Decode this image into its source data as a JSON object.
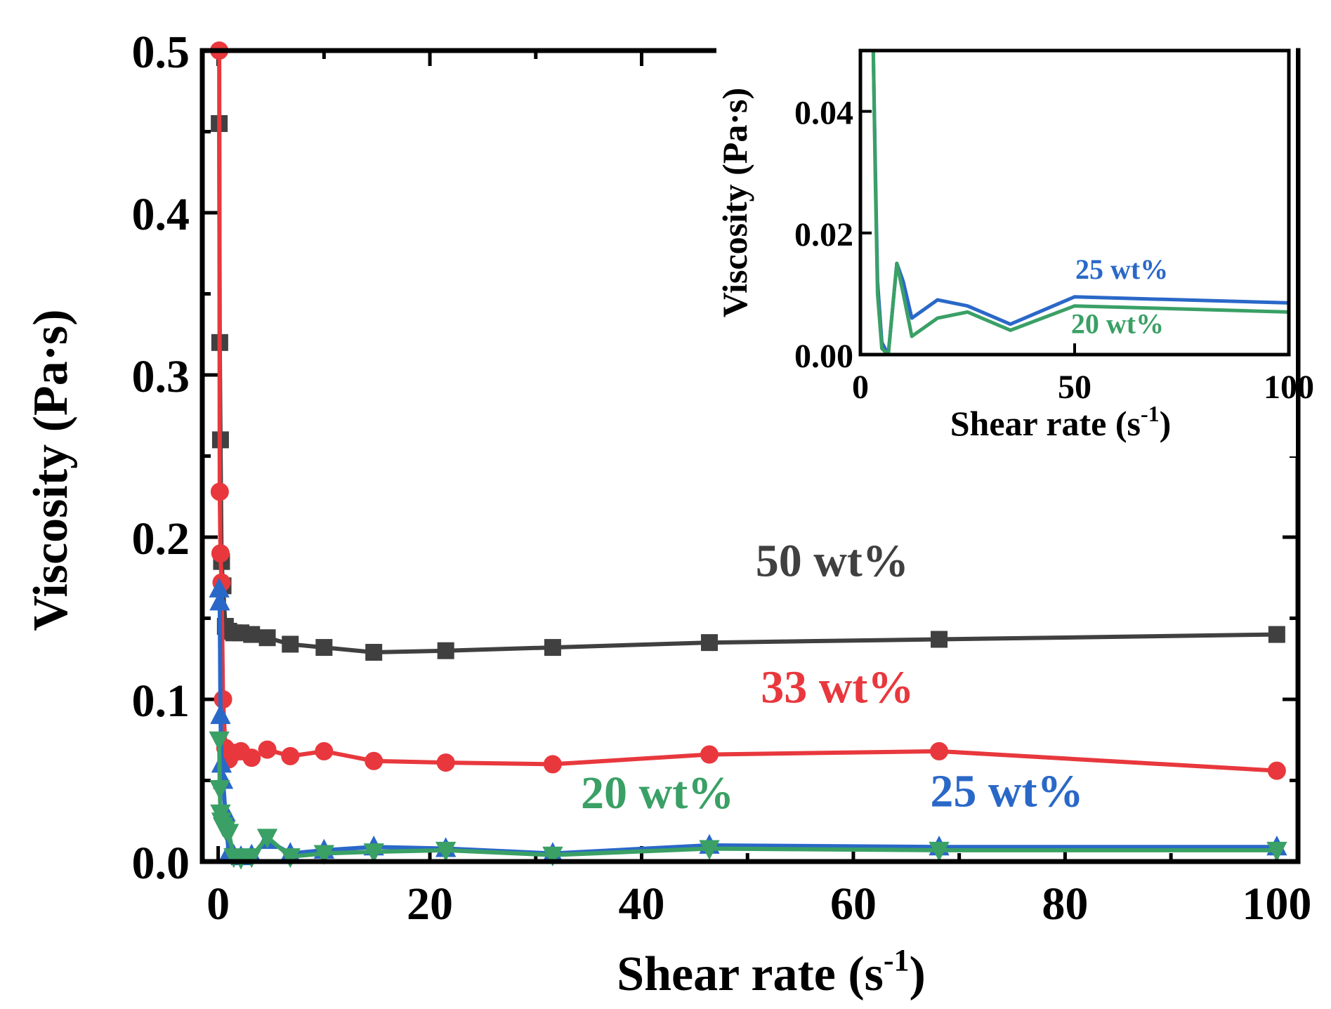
{
  "chart_data": [
    {
      "type": "line",
      "xlabel": "Shear rate (s-1)",
      "xlabel_main": "Shear rate (s",
      "xlabel_sup": "-1",
      "xlabel_close": ")",
      "ylabel": "Viscosity (Pa·s)",
      "xlim": [
        -1.5,
        102
      ],
      "ylim": [
        0,
        0.5
      ],
      "xticks": [
        0,
        20,
        40,
        60,
        80,
        100
      ],
      "yticks": [
        0.0,
        0.1,
        0.2,
        0.3,
        0.4,
        0.5
      ],
      "xtick_labels": [
        "0",
        "20",
        "40",
        "60",
        "80",
        "100"
      ],
      "ytick_labels": [
        "0.0",
        "0.1",
        "0.2",
        "0.3",
        "0.4",
        "0.5"
      ],
      "series": [
        {
          "name": "50 wt%",
          "color": "#404040",
          "marker": "square",
          "x": [
            0.1,
            0.15,
            0.22,
            0.32,
            0.46,
            0.68,
            1.0,
            1.47,
            2.15,
            3.16,
            4.64,
            6.81,
            10.0,
            14.7,
            21.5,
            31.6,
            46.4,
            68.1,
            100
          ],
          "y": [
            0.455,
            0.32,
            0.26,
            0.185,
            0.17,
            0.145,
            0.142,
            0.141,
            0.141,
            0.14,
            0.138,
            0.134,
            0.132,
            0.129,
            0.13,
            0.132,
            0.135,
            0.137,
            0.14
          ]
        },
        {
          "name": "33 wt%",
          "color": "#e8383d",
          "marker": "circle",
          "x": [
            0.1,
            0.15,
            0.22,
            0.32,
            0.46,
            0.68,
            1.0,
            1.47,
            2.15,
            3.16,
            4.64,
            6.81,
            10.0,
            14.7,
            21.5,
            31.6,
            46.4,
            68.1,
            100
          ],
          "y": [
            0.5,
            0.228,
            0.19,
            0.172,
            0.1,
            0.07,
            0.063,
            0.067,
            0.068,
            0.064,
            0.069,
            0.065,
            0.068,
            0.062,
            0.061,
            0.06,
            0.066,
            0.068,
            0.056
          ]
        },
        {
          "name": "25 wt%",
          "color": "#2a68c8",
          "marker": "triangle-up",
          "x": [
            0.1,
            0.15,
            0.22,
            0.32,
            0.46,
            0.68,
            1.0,
            1.47,
            2.15,
            3.16,
            4.64,
            6.81,
            10.0,
            14.7,
            21.5,
            31.6,
            46.4,
            68.1,
            100
          ],
          "y": [
            0.168,
            0.16,
            0.09,
            0.06,
            0.05,
            0.03,
            0.005,
            0.004,
            0.003,
            0.004,
            0.013,
            0.005,
            0.007,
            0.009,
            0.008,
            0.005,
            0.01,
            0.009,
            0.009
          ]
        },
        {
          "name": "20 wt%",
          "color": "#3aa065",
          "marker": "triangle-down",
          "x": [
            0.1,
            0.15,
            0.22,
            0.32,
            0.46,
            0.68,
            1.0,
            1.47,
            2.15,
            3.16,
            4.64,
            6.81,
            10.0,
            14.7,
            21.5,
            31.6,
            46.4,
            68.1,
            100
          ],
          "y": [
            0.075,
            0.045,
            0.03,
            0.025,
            0.022,
            0.02,
            0.018,
            0.003,
            0.002,
            0.003,
            0.015,
            0.003,
            0.005,
            0.006,
            0.007,
            0.004,
            0.008,
            0.007,
            0.007
          ]
        }
      ],
      "annotations": [
        {
          "text": "50 wt%",
          "series": "50 wt%",
          "x": 58,
          "y": 0.176
        },
        {
          "text": "33 wt%",
          "series": "33 wt%",
          "x": 58.5,
          "y": 0.098
        },
        {
          "text": "20 wt%",
          "series": "20 wt%",
          "x": 41.5,
          "y": 0.033
        },
        {
          "text": "25 wt%",
          "series": "25 wt%",
          "x": 74.5,
          "y": 0.034
        }
      ]
    },
    {
      "type": "line",
      "role": "inset",
      "xlabel": "Shear rate (s-1)",
      "xlabel_main": "Shear rate (s",
      "xlabel_sup": "-1",
      "xlabel_close": ")",
      "ylabel": "Viscosity (Pa·s)",
      "xlim": [
        0,
        100
      ],
      "ylim": [
        0,
        0.05
      ],
      "xticks": [
        0,
        50,
        100
      ],
      "yticks": [
        0.0,
        0.02,
        0.04
      ],
      "xtick_labels": [
        "0",
        "50",
        "100"
      ],
      "ytick_labels": [
        "0.00",
        "0.02",
        "0.04"
      ],
      "series": [
        {
          "name": "25 wt%",
          "color": "#2a68c8",
          "x": [
            3.0,
            3.5,
            4.0,
            5.0,
            6.5,
            8.5,
            10.0,
            12.0,
            18.0,
            25.0,
            35.0,
            50.0,
            100.0
          ],
          "y": [
            0.05,
            0.03,
            0.012,
            0.002,
            0.0,
            0.015,
            0.012,
            0.006,
            0.009,
            0.008,
            0.005,
            0.0095,
            0.0085
          ]
        },
        {
          "name": "20 wt%",
          "color": "#3aa065",
          "x": [
            3.0,
            3.5,
            4.0,
            5.0,
            6.5,
            8.5,
            10.0,
            12.0,
            18.0,
            25.0,
            35.0,
            50.0,
            100.0
          ],
          "y": [
            0.05,
            0.028,
            0.01,
            0.001,
            0.0,
            0.015,
            0.01,
            0.003,
            0.006,
            0.007,
            0.004,
            0.008,
            0.007
          ]
        }
      ],
      "annotations": [
        {
          "text": "25 wt%",
          "series": "25 wt%",
          "x": 61,
          "y": 0.0125
        },
        {
          "text": "20 wt%",
          "series": "20 wt%",
          "x": 60,
          "y": 0.0035
        }
      ]
    }
  ]
}
